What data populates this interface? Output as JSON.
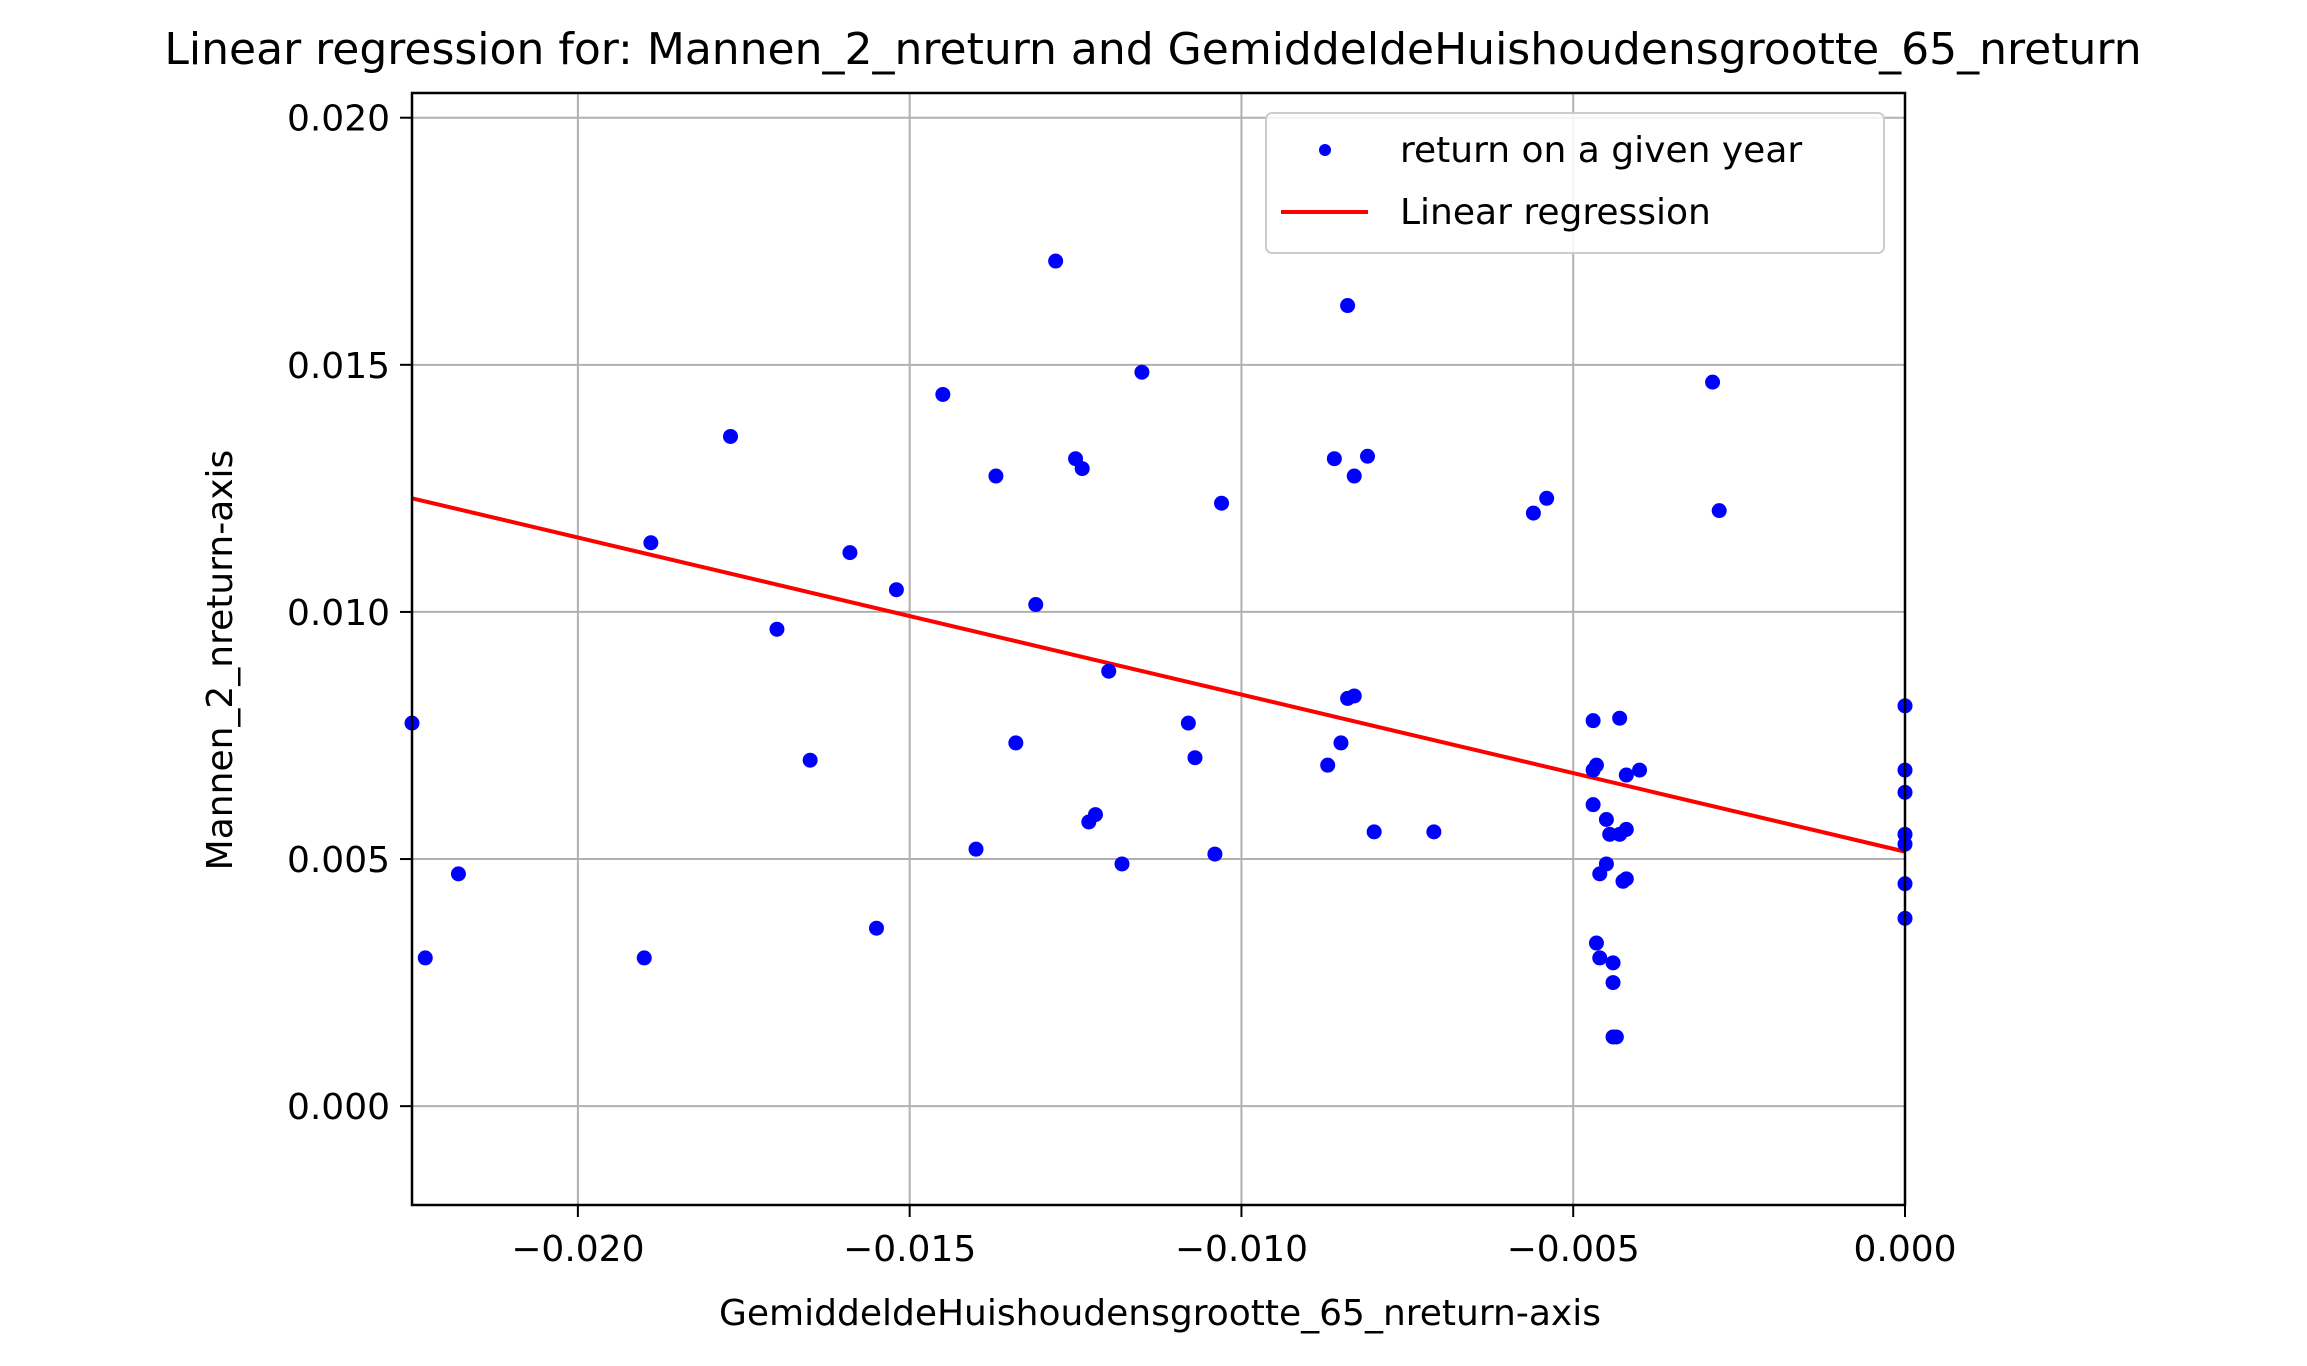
{
  "chart_data": {
    "type": "scatter",
    "title": "Linear regression for: Mannen_2_nreturn and GemiddeldeHuishoudensgrootte_65_nreturn",
    "xlabel": "GemiddeldeHuishoudensgrootte_65_nreturn-axis",
    "ylabel": "Mannen_2_nreturn-axis",
    "xlim": [
      -0.0225,
      0.0
    ],
    "ylim": [
      -0.002,
      0.0205
    ],
    "grid": true,
    "legend_placement": "top-right",
    "x_ticks": [
      {
        "value": -0.02,
        "label": "−0.020"
      },
      {
        "value": -0.015,
        "label": "−0.015"
      },
      {
        "value": -0.01,
        "label": "−0.010"
      },
      {
        "value": -0.005,
        "label": "−0.005"
      },
      {
        "value": 0.0,
        "label": "0.000"
      }
    ],
    "y_ticks": [
      {
        "value": 0.0,
        "label": "0.000"
      },
      {
        "value": 0.005,
        "label": "0.005"
      },
      {
        "value": 0.01,
        "label": "0.010"
      },
      {
        "value": 0.015,
        "label": "0.015"
      },
      {
        "value": 0.02,
        "label": "0.020"
      }
    ],
    "series": [
      {
        "name": "return on a given year",
        "kind": "scatter",
        "color": "#0000ff",
        "points": [
          [
            -0.0225,
            0.00775
          ],
          [
            -0.0223,
            0.003
          ],
          [
            -0.0218,
            0.0047
          ],
          [
            -0.019,
            0.003
          ],
          [
            -0.0189,
            0.0114
          ],
          [
            -0.0177,
            0.01355
          ],
          [
            -0.017,
            0.00965
          ],
          [
            -0.0165,
            0.007
          ],
          [
            -0.0159,
            0.0112
          ],
          [
            -0.0155,
            0.0036
          ],
          [
            -0.0152,
            0.01045
          ],
          [
            -0.0145,
            0.0144
          ],
          [
            -0.014,
            0.0052
          ],
          [
            -0.0137,
            0.01275
          ],
          [
            -0.0134,
            0.00735
          ],
          [
            -0.0131,
            0.01015
          ],
          [
            -0.0128,
            0.0171
          ],
          [
            -0.0125,
            0.0131
          ],
          [
            -0.0124,
            0.0129
          ],
          [
            -0.0123,
            0.00575
          ],
          [
            -0.0122,
            0.0059
          ],
          [
            -0.012,
            0.0088
          ],
          [
            -0.0118,
            0.0049
          ],
          [
            -0.0115,
            0.01485
          ],
          [
            -0.0108,
            0.00775
          ],
          [
            -0.0107,
            0.00705
          ],
          [
            -0.0104,
            0.0051
          ],
          [
            -0.0103,
            0.0122
          ],
          [
            -0.0087,
            0.0069
          ],
          [
            -0.0086,
            0.0131
          ],
          [
            -0.0085,
            0.00735
          ],
          [
            -0.0084,
            0.0162
          ],
          [
            -0.0084,
            0.00825
          ],
          [
            -0.0083,
            0.0083
          ],
          [
            -0.0083,
            0.01275
          ],
          [
            -0.0081,
            0.01315
          ],
          [
            -0.008,
            0.00555
          ],
          [
            -0.0071,
            0.00555
          ],
          [
            -0.0056,
            0.012
          ],
          [
            -0.0054,
            0.0123
          ],
          [
            -0.0029,
            0.01465
          ],
          [
            -0.0028,
            0.01205
          ],
          [
            -0.0047,
            0.0078
          ],
          [
            -0.0047,
            0.0068
          ],
          [
            -0.00465,
            0.0069
          ],
          [
            -0.0047,
            0.0061
          ],
          [
            -0.0046,
            0.0047
          ],
          [
            -0.00465,
            0.0033
          ],
          [
            -0.0046,
            0.003
          ],
          [
            -0.0045,
            0.0058
          ],
          [
            -0.0045,
            0.0049
          ],
          [
            -0.00445,
            0.0055
          ],
          [
            -0.0044,
            0.0029
          ],
          [
            -0.0044,
            0.0025
          ],
          [
            -0.00435,
            0.0014
          ],
          [
            -0.0044,
            0.0014
          ],
          [
            -0.0043,
            0.00785
          ],
          [
            -0.0043,
            0.0055
          ],
          [
            -0.0042,
            0.0056
          ],
          [
            -0.00425,
            0.00455
          ],
          [
            -0.0042,
            0.0046
          ],
          [
            -0.0042,
            0.0067
          ],
          [
            -0.004,
            0.0068
          ],
          [
            0.0,
            0.0081
          ],
          [
            0.0,
            0.0068
          ],
          [
            0.0,
            0.00635
          ],
          [
            0.0,
            0.0055
          ],
          [
            0.0,
            0.0053
          ],
          [
            0.0,
            0.0045
          ],
          [
            0.0,
            0.0038
          ]
        ]
      },
      {
        "name": "Linear regression",
        "kind": "line",
        "color": "#ff0000",
        "points": [
          [
            -0.0225,
            0.0123
          ],
          [
            0.0,
            0.00515
          ]
        ]
      }
    ]
  }
}
